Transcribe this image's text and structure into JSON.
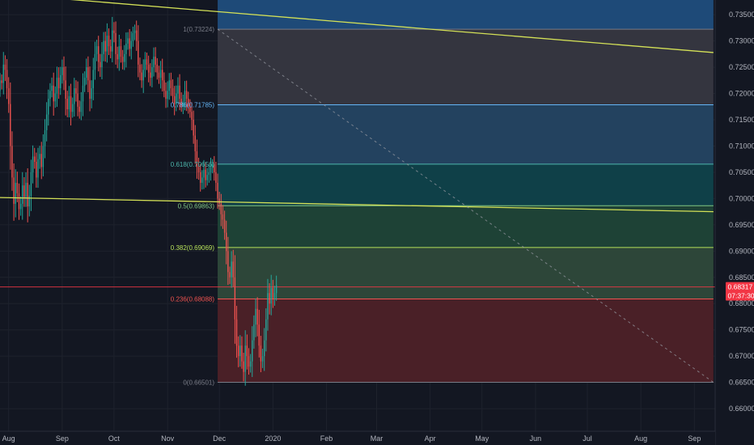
{
  "chart_data": {
    "type": "candlestick",
    "title": "",
    "xlabel": "",
    "ylabel": "",
    "ylim": [
      0.6557,
      0.7378
    ],
    "grid": true,
    "y_ticks": [
      "0.73500",
      "0.73000",
      "0.72500",
      "0.72000",
      "0.71500",
      "0.71000",
      "0.70500",
      "0.70000",
      "0.69500",
      "0.69000",
      "0.68500",
      "0.68000",
      "0.67500",
      "0.67000",
      "0.66500",
      "0.66000"
    ],
    "x_ticks": [
      "Aug",
      "Sep",
      "Oct",
      "Nov",
      "Dec",
      "2020",
      "Feb",
      "Mar",
      "Apr",
      "May",
      "Jun",
      "Jul",
      "Aug",
      "Sep"
    ],
    "x_tick_dates": [
      "2019-08-01",
      "2019-09-01",
      "2019-10-01",
      "2019-11-01",
      "2019-12-01",
      "2020-01-01",
      "2020-02-01",
      "2020-03-01",
      "2020-04-01",
      "2020-05-01",
      "2020-06-01",
      "2020-07-01",
      "2020-08-01",
      "2020-09-01"
    ],
    "x_range": [
      "2019-07-27",
      "2020-09-13"
    ],
    "candle_data": {
      "start_date": "2019-07-27",
      "interval_days": 1,
      "start_price": 0.7205,
      "closes": [
        0.7225,
        0.722,
        0.7255,
        0.7245,
        0.721,
        0.718,
        0.71,
        0.704,
        0.699,
        0.703,
        0.701,
        0.698,
        0.699,
        0.7025,
        0.7,
        0.703,
        0.6985,
        0.7005,
        0.705,
        0.708,
        0.707,
        0.704,
        0.7075,
        0.7085,
        0.706,
        0.71,
        0.713,
        0.716,
        0.719,
        0.7205,
        0.7215,
        0.7185,
        0.72,
        0.723,
        0.721,
        0.7235,
        0.725,
        0.7225,
        0.719,
        0.717,
        0.7195,
        0.7165,
        0.718,
        0.721,
        0.72,
        0.7175,
        0.7165,
        0.7185,
        0.7215,
        0.723,
        0.725,
        0.7225,
        0.719,
        0.721,
        0.7245,
        0.7275,
        0.729,
        0.726,
        0.725,
        0.7275,
        0.73,
        0.728,
        0.731,
        0.729,
        0.728,
        0.732,
        0.7315,
        0.7275,
        0.7265,
        0.729,
        0.727,
        0.726,
        0.7275,
        0.7295,
        0.7305,
        0.7285,
        0.73,
        0.7315,
        0.732,
        0.73,
        0.7255,
        0.724,
        0.7225,
        0.7245,
        0.7265,
        0.7255,
        0.724,
        0.723,
        0.725,
        0.727,
        0.7255,
        0.724,
        0.723,
        0.7245,
        0.7225,
        0.7205,
        0.719,
        0.7205,
        0.7225,
        0.721,
        0.7195,
        0.718,
        0.72,
        0.7215,
        0.719,
        0.7175,
        0.7185,
        0.7205,
        0.719,
        0.7175,
        0.7165,
        0.715,
        0.712,
        0.709,
        0.706,
        0.705,
        0.703,
        0.704,
        0.7055,
        0.7035,
        0.7045,
        0.705,
        0.706,
        0.7065,
        0.705,
        0.703,
        0.7,
        0.699,
        0.697,
        0.696,
        0.6935,
        0.69,
        0.686,
        0.685,
        0.688,
        0.685,
        0.677,
        0.672,
        0.67,
        0.672,
        0.669,
        0.667,
        0.672,
        0.67,
        0.668,
        0.669,
        0.673,
        0.676,
        0.679,
        0.676,
        0.672,
        0.669,
        0.67,
        0.673,
        0.677,
        0.682,
        0.68,
        0.683,
        0.681,
        0.682,
        0.6835
      ]
    },
    "horizontal_lines": [
      {
        "value": 0.68317,
        "color": "#f23645",
        "style": "solid"
      }
    ],
    "trendlines": [
      {
        "from": [
          "2019-07-27",
          0.739
        ],
        "to": [
          "2020-09-12",
          0.7278
        ],
        "color": "#d4e157"
      },
      {
        "from": [
          "2019-07-27",
          0.7002
        ],
        "to": [
          "2020-09-12",
          0.6975
        ],
        "color": "#d4e157"
      },
      {
        "from": [
          "2019-11-30",
          0.73224
        ],
        "to": [
          "2020-09-12",
          0.66501
        ],
        "color": "#9598a1",
        "style": "dashed"
      }
    ],
    "fibonacci": {
      "start_date": "2019-11-30",
      "end_date": "2020-09-12",
      "levels": [
        {
          "label": "1(0.73224)",
          "value": 0.73224,
          "color": "#787b86"
        },
        {
          "label": "0.786(0.71785)",
          "value": 0.71785,
          "color": "#64b5f6"
        },
        {
          "label": "0.618(0.70656)",
          "value": 0.70656,
          "color": "#4db6ac"
        },
        {
          "label": "0.5(0.69863)",
          "value": 0.69863,
          "color": "#81c784"
        },
        {
          "label": "0.382(0.69069)",
          "value": 0.69069,
          "color": "#b5e05a"
        },
        {
          "label": "0.236(0.68088)",
          "value": 0.68088,
          "color": "#ef5350"
        },
        {
          "label": "0(0.66501)",
          "value": 0.66501,
          "color": "#787b86"
        }
      ],
      "top_fill": {
        "value_top": 0.7378,
        "value_bottom": 0.73224,
        "color": "#1e4a78"
      },
      "bands": [
        {
          "from": 0.73224,
          "to": 0.71785,
          "color": "#34353f"
        },
        {
          "from": 0.71785,
          "to": 0.70656,
          "color": "#23425f"
        },
        {
          "from": 0.70656,
          "to": 0.69863,
          "color": "#0f4048"
        },
        {
          "from": 0.69863,
          "to": 0.69069,
          "color": "#1e4236"
        },
        {
          "from": 0.69069,
          "to": 0.68088,
          "color": "#2d4639"
        },
        {
          "from": 0.68088,
          "to": 0.66501,
          "color": "#4a2027"
        }
      ]
    },
    "price_badges": [
      {
        "label": "0.68317",
        "value": 0.68317,
        "color": "#f23645"
      },
      {
        "label": "07:37:30",
        "value": 0.6815,
        "color": "#f23645"
      }
    ],
    "colors": {
      "background": "#131722",
      "grid": "#1e222d",
      "up": "#26a69a",
      "down": "#ef5350",
      "axis_text": "#b2b5be"
    }
  }
}
